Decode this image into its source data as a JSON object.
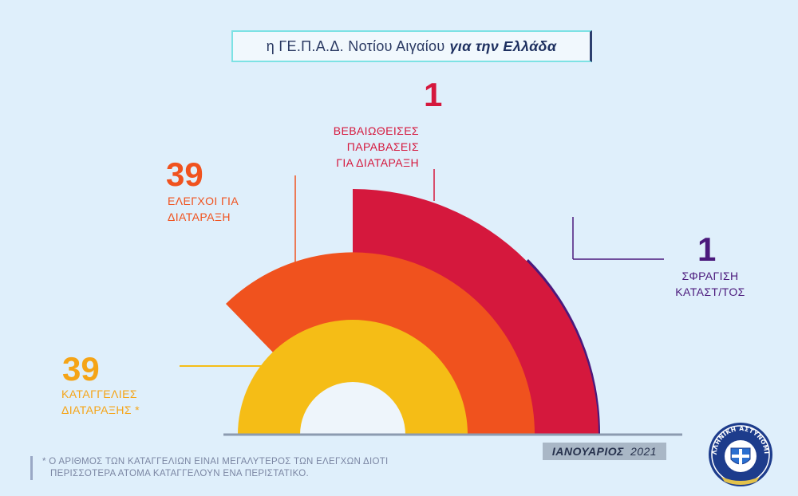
{
  "header": {
    "title_prefix": "η ΓΕ.Π.Α.Δ. Νοτίου Αιγαίου",
    "title_emphasis": "για την Ελλάδα"
  },
  "colors": {
    "background": "#dfeffb",
    "yellow": "#f5bd16",
    "orange": "#f0521e",
    "red": "#d5183d",
    "purple": "#4b197c",
    "center": "#eef5fb"
  },
  "chart_data": {
    "type": "radial-bar",
    "title": "",
    "series": [
      {
        "number": "39",
        "label_lines": [
          "ΚΑΤΑΓΓΕΛΙΕΣ",
          "ΔΙΑΤΑΡΑΞΗΣ *"
        ],
        "value": 39,
        "color": "#f5bd16"
      },
      {
        "number": "39",
        "label_lines": [
          "ΕΛΕΓΧΟΙ ΓΙΑ",
          "ΔΙΑΤΑΡΑΞΗ"
        ],
        "value": 39,
        "color": "#f0521e"
      },
      {
        "number": "1",
        "label_lines": [
          "ΒΕΒΑΙΩΘΕΙΣΕΣ",
          "ΠΑΡΑΒΑΣΕΙΣ",
          "ΓΙΑ ΔΙΑΤΑΡΑΞΗ"
        ],
        "value": 1,
        "color": "#d5183d"
      },
      {
        "number": "1",
        "label_lines": [
          "ΣΦΡΑΓΙΣΗ",
          "ΚΑΤΑΣΤ/ΤΟΣ"
        ],
        "value": 1,
        "color": "#4b197c"
      }
    ]
  },
  "period": {
    "month": "ΙΑΝΟΥΑΡΙΟΣ",
    "year": "2021"
  },
  "footnote": {
    "lines": [
      "* Ο ΑΡΙΘΜΟΣ ΤΩΝ ΚΑΤΑΓΓΕΛΙΩΝ ΕΙΝΑΙ ΜΕΓΑΛΥΤΕΡΟΣ ΤΩΝ ΕΛΕΓΧΩΝ ΔΙΟΤΙ",
      "ΠΕΡΙΣΣΟΤΕΡΑ ΑΤΟΜΑ ΚΑΤΑΓΓΕΛΟΥΝ ΕΝΑ ΠΕΡΙΣΤΑΤΙΚΟ."
    ]
  },
  "logo": {
    "icon": "hellenic-police-emblem-icon",
    "text": "ΕΛΛΗΝΙΚΗ ΑΣΤΥΝΟΜΙΑ"
  }
}
